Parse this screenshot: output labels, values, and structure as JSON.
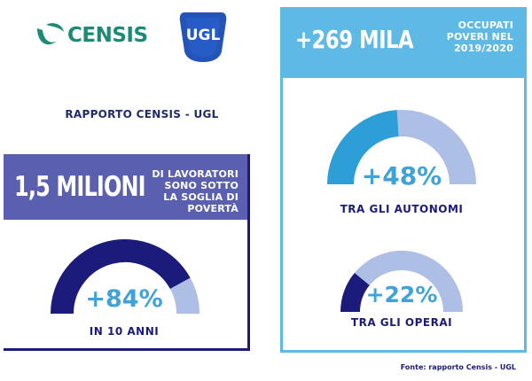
{
  "logos": {
    "censis": {
      "text": "CENSIS",
      "icon": "censis-swoosh-icon",
      "color": "#1d8a75"
    },
    "ugl": {
      "text": "UGL",
      "icon": "ugl-badge-icon",
      "color": "#2454b8"
    }
  },
  "report_title": "RAPPORTO CENSIS - UGL",
  "left_panel": {
    "headline": "1,5 MILIONI",
    "description": [
      "DI LAVORATORI",
      "SONO SOTTO",
      "LA SOGLIA DI",
      "POVERTÀ"
    ],
    "gauge": {
      "value": 84,
      "label": "+84%",
      "caption": "IN 10 ANNI",
      "fill_color": "#1a1b7a",
      "track_color": "#aebfe6"
    },
    "band_color": "#5a5fb0",
    "border_color": "#1a1b7a"
  },
  "right_panel": {
    "headline": "+269 MILA",
    "description": [
      "OCCUPATI",
      "POVERI NEL",
      "2019/2020"
    ],
    "band_color": "#5fb9e5",
    "gauges": [
      {
        "value": 48,
        "label": "+48%",
        "caption": "TRA GLI AUTONOMI",
        "fill_color": "#2d9fd6",
        "track_color": "#aebfe6"
      },
      {
        "value": 22,
        "label": "+22%",
        "caption": "TRA GLI OPERAI",
        "fill_color": "#1a1b7a",
        "track_color": "#aebfe6"
      }
    ]
  },
  "source": "Fonte: rapporto Censis - UGL",
  "colors": {
    "percent_text": "#3fa2d9",
    "caption_text": "#1a1b7a"
  }
}
